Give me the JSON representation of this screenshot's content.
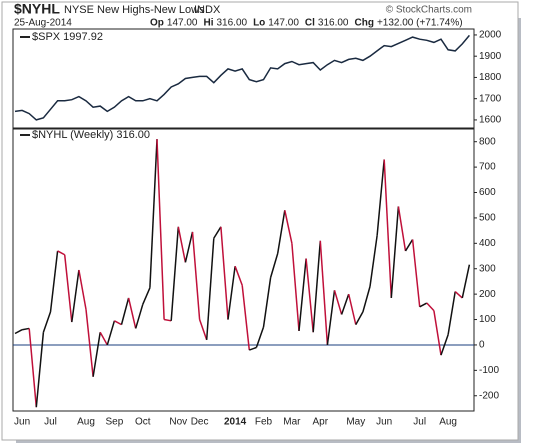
{
  "header": {
    "symbol": "$NYHL",
    "name": "NYSE New Highs-New Lows",
    "exchange": "INDX",
    "credit": "© StockCharts.com",
    "date": "25-Aug-2014",
    "quote": [
      {
        "label": "Op",
        "value": "147.00"
      },
      {
        "label": "Hi",
        "value": "316.00"
      },
      {
        "label": "Lo",
        "value": "147.00"
      },
      {
        "label": "Cl",
        "value": "316.00"
      },
      {
        "label": "Chg",
        "value": "+132.00 (+71.74%)"
      }
    ]
  },
  "chart_data": [
    {
      "type": "line",
      "label": "$SPX 1997.92",
      "color": "#1a2a40",
      "values": [
        1640,
        1645,
        1630,
        1600,
        1610,
        1650,
        1690,
        1690,
        1695,
        1710,
        1690,
        1660,
        1665,
        1640,
        1660,
        1690,
        1710,
        1690,
        1690,
        1700,
        1690,
        1720,
        1755,
        1770,
        1795,
        1800,
        1805,
        1805,
        1775,
        1810,
        1840,
        1830,
        1840,
        1790,
        1780,
        1790,
        1845,
        1840,
        1865,
        1875,
        1860,
        1865,
        1870,
        1835,
        1860,
        1880,
        1870,
        1885,
        1890,
        1880,
        1900,
        1925,
        1950,
        1945,
        1960,
        1975,
        1990,
        1980,
        1975,
        1965,
        1980,
        1930,
        1925,
        1958,
        1997.92
      ],
      "ylim": [
        1562,
        2028
      ],
      "yticks": [
        1600,
        1700,
        1800,
        1900,
        2000
      ]
    },
    {
      "type": "updown-line",
      "label": "$NYHL (Weekly) 316.00",
      "up_color": "#111111",
      "down_color": "#c0103a",
      "zero_line_color": "#1a3d7c",
      "categories": [
        null,
        "Jun",
        null,
        null,
        null,
        "Jul",
        null,
        null,
        null,
        null,
        "Aug",
        null,
        null,
        null,
        "Sep",
        null,
        null,
        null,
        "Oct",
        null,
        null,
        null,
        null,
        "Nov",
        null,
        null,
        "Dec",
        null,
        null,
        null,
        null,
        "2014",
        null,
        null,
        null,
        "Feb",
        null,
        null,
        null,
        "Mar",
        null,
        null,
        null,
        "Apr",
        null,
        null,
        null,
        null,
        "May",
        null,
        null,
        null,
        "Jun",
        null,
        null,
        null,
        null,
        "Jul",
        null,
        null,
        null,
        "Aug",
        null,
        null,
        null
      ],
      "values": [
        45,
        60,
        65,
        -245,
        50,
        130,
        370,
        355,
        90,
        295,
        140,
        -125,
        50,
        0,
        95,
        80,
        185,
        65,
        160,
        225,
        810,
        100,
        95,
        465,
        325,
        445,
        100,
        20,
        420,
        465,
        100,
        310,
        235,
        -20,
        -10,
        70,
        265,
        360,
        530,
        400,
        55,
        340,
        50,
        410,
        0,
        215,
        120,
        200,
        80,
        130,
        230,
        430,
        730,
        185,
        545,
        370,
        415,
        150,
        165,
        135,
        -40,
        40,
        210,
        185,
        316
      ],
      "ylim": [
        -260,
        850
      ],
      "yticks": [
        -200,
        -100,
        0,
        100,
        200,
        300,
        400,
        500,
        600,
        700,
        800
      ]
    }
  ]
}
